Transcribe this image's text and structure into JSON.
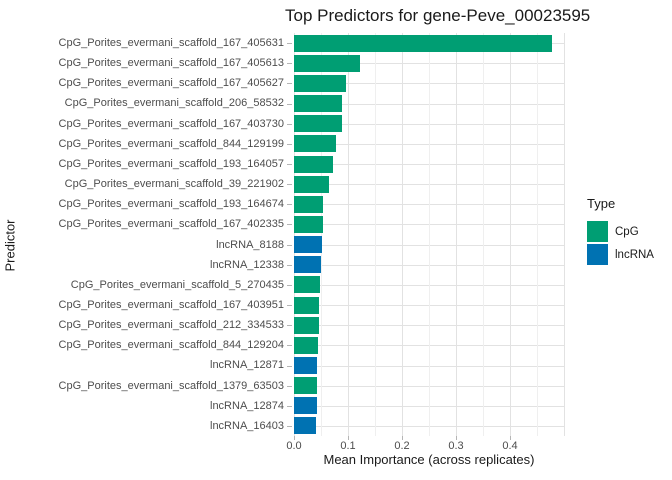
{
  "chart_data": {
    "type": "bar",
    "orientation": "horizontal",
    "title": "Top Predictors for gene-Peve_00023595",
    "xlabel": "Mean Importance (across replicates)",
    "ylabel": "Predictor",
    "xlim": [
      0,
      0.5
    ],
    "x_ticks": [
      0.0,
      0.1,
      0.2,
      0.3,
      0.4
    ],
    "x_tick_labels": [
      "0.0",
      "0.1",
      "0.2",
      "0.3",
      "0.4"
    ],
    "grid": true,
    "legend": {
      "title": "Type",
      "position": "right",
      "entries": [
        {
          "label": "CpG",
          "color": "#009E73"
        },
        {
          "label": "lncRNA",
          "color": "#0072B2"
        }
      ]
    },
    "type_colors": {
      "CpG": "#009E73",
      "lncRNA": "#0072B2"
    },
    "bars": [
      {
        "label": "CpG_Porites_evermani_scaffold_167_405631",
        "value": 0.477,
        "type": "CpG"
      },
      {
        "label": "CpG_Porites_evermani_scaffold_167_405613",
        "value": 0.122,
        "type": "CpG"
      },
      {
        "label": "CpG_Porites_evermani_scaffold_167_405627",
        "value": 0.096,
        "type": "CpG"
      },
      {
        "label": "CpG_Porites_evermani_scaffold_206_58532",
        "value": 0.089,
        "type": "CpG"
      },
      {
        "label": "CpG_Porites_evermani_scaffold_167_403730",
        "value": 0.088,
        "type": "CpG"
      },
      {
        "label": "CpG_Porites_evermani_scaffold_844_129199",
        "value": 0.077,
        "type": "CpG"
      },
      {
        "label": "CpG_Porites_evermani_scaffold_193_164057",
        "value": 0.073,
        "type": "CpG"
      },
      {
        "label": "CpG_Porites_evermani_scaffold_39_221902",
        "value": 0.065,
        "type": "CpG"
      },
      {
        "label": "CpG_Porites_evermani_scaffold_193_164674",
        "value": 0.054,
        "type": "CpG"
      },
      {
        "label": "CpG_Porites_evermani_scaffold_167_402335",
        "value": 0.053,
        "type": "CpG"
      },
      {
        "label": "lncRNA_8188",
        "value": 0.051,
        "type": "lncRNA"
      },
      {
        "label": "lncRNA_12338",
        "value": 0.05,
        "type": "lncRNA"
      },
      {
        "label": "CpG_Porites_evermani_scaffold_5_270435",
        "value": 0.048,
        "type": "CpG"
      },
      {
        "label": "CpG_Porites_evermani_scaffold_167_403951",
        "value": 0.047,
        "type": "CpG"
      },
      {
        "label": "CpG_Porites_evermani_scaffold_212_334533",
        "value": 0.047,
        "type": "CpG"
      },
      {
        "label": "CpG_Porites_evermani_scaffold_844_129204",
        "value": 0.044,
        "type": "CpG"
      },
      {
        "label": "lncRNA_12871",
        "value": 0.043,
        "type": "lncRNA"
      },
      {
        "label": "CpG_Porites_evermani_scaffold_1379_63503",
        "value": 0.043,
        "type": "CpG"
      },
      {
        "label": "lncRNA_12874",
        "value": 0.042,
        "type": "lncRNA"
      },
      {
        "label": "lncRNA_16403",
        "value": 0.04,
        "type": "lncRNA"
      }
    ]
  }
}
